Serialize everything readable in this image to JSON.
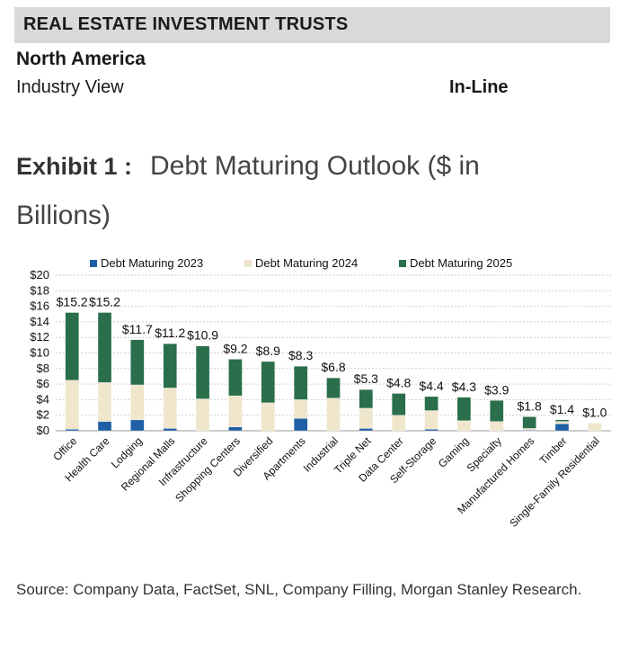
{
  "header": {
    "banner": "REAL ESTATE INVESTMENT TRUSTS",
    "region": "North America",
    "industry_view": "Industry View",
    "rating": "In-Line"
  },
  "exhibit": {
    "label": "Exhibit 1 :",
    "title": "Debt Maturing Outlook ($ in Billions)"
  },
  "source": "Source: Company Data, FactSet, SNL, Company Filling, Morgan Stanley Research.",
  "colors": {
    "s2023": "#1f5fa5",
    "s2024": "#efe6cc",
    "s2025": "#2a6e4c",
    "banner": "#d9d9d9"
  },
  "chart_data": {
    "type": "bar",
    "stacked": true,
    "categories": [
      "Office",
      "Health Care",
      "Lodging",
      "Regional Malls",
      "Infrastructure",
      "Shopping Centers",
      "Diversified",
      "Apartments",
      "Industrial",
      "Triple Net",
      "Data Center",
      "Self-Storage",
      "Gaming",
      "Specialty",
      "Manufactured Homes",
      "Timber",
      "Single-Family Residential"
    ],
    "series": [
      {
        "name": "Debt Maturing 2023",
        "values": [
          0.2,
          1.2,
          1.4,
          0.3,
          0.0,
          0.5,
          0.0,
          1.6,
          0.0,
          0.3,
          0.0,
          0.2,
          0.0,
          0.0,
          0.1,
          0.9,
          0.0
        ]
      },
      {
        "name": "Debt Maturing 2024",
        "values": [
          6.3,
          5.0,
          4.5,
          5.2,
          4.1,
          4.0,
          3.6,
          2.4,
          4.2,
          2.6,
          2.0,
          2.4,
          1.3,
          1.2,
          0.2,
          0.3,
          1.0
        ]
      },
      {
        "name": "Debt Maturing 2025",
        "values": [
          8.7,
          9.0,
          5.8,
          5.7,
          6.8,
          4.7,
          5.3,
          4.3,
          2.6,
          2.4,
          2.8,
          1.8,
          3.0,
          2.7,
          1.5,
          0.2,
          0.0
        ]
      }
    ],
    "totals": [
      "$15.2",
      "$15.2",
      "$11.7",
      "$11.2",
      "$10.9",
      "$9.2",
      "$8.9",
      "$8.3",
      "$6.8",
      "$5.3",
      "$4.8",
      "$4.4",
      "$4.3",
      "$3.9",
      "$1.8",
      "$1.4",
      "$1.0"
    ],
    "yticks": [
      "$0",
      "$2",
      "$4",
      "$6",
      "$8",
      "$10",
      "$12",
      "$14",
      "$16",
      "$18",
      "$20"
    ],
    "ylim": [
      0,
      20
    ],
    "grid": true,
    "legend_position": "top"
  }
}
